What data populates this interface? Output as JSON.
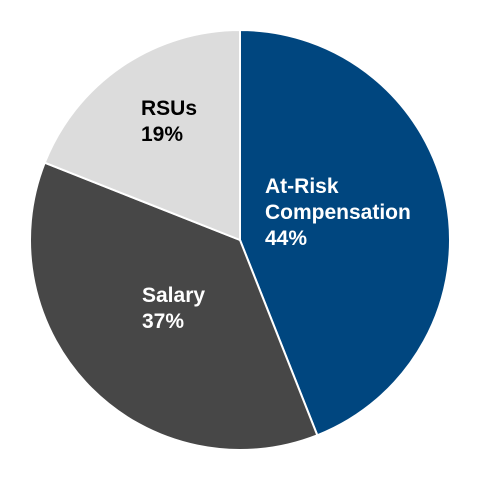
{
  "chart_data": {
    "type": "pie",
    "title": "",
    "start_angle_deg": 0,
    "direction": "clockwise",
    "slices": [
      {
        "label": [
          "At-Risk",
          "Compensation"
        ],
        "value": 44,
        "value_label": "44%",
        "color": "#00467f",
        "text_color": "#ffffff"
      },
      {
        "label": [
          "Salary"
        ],
        "value": 37,
        "value_label": "37%",
        "color": "#474747",
        "text_color": "#ffffff"
      },
      {
        "label": [
          "RSUs"
        ],
        "value": 19,
        "value_label": "19%",
        "color": "#dcdcdc",
        "text_color": "#000000"
      }
    ]
  }
}
